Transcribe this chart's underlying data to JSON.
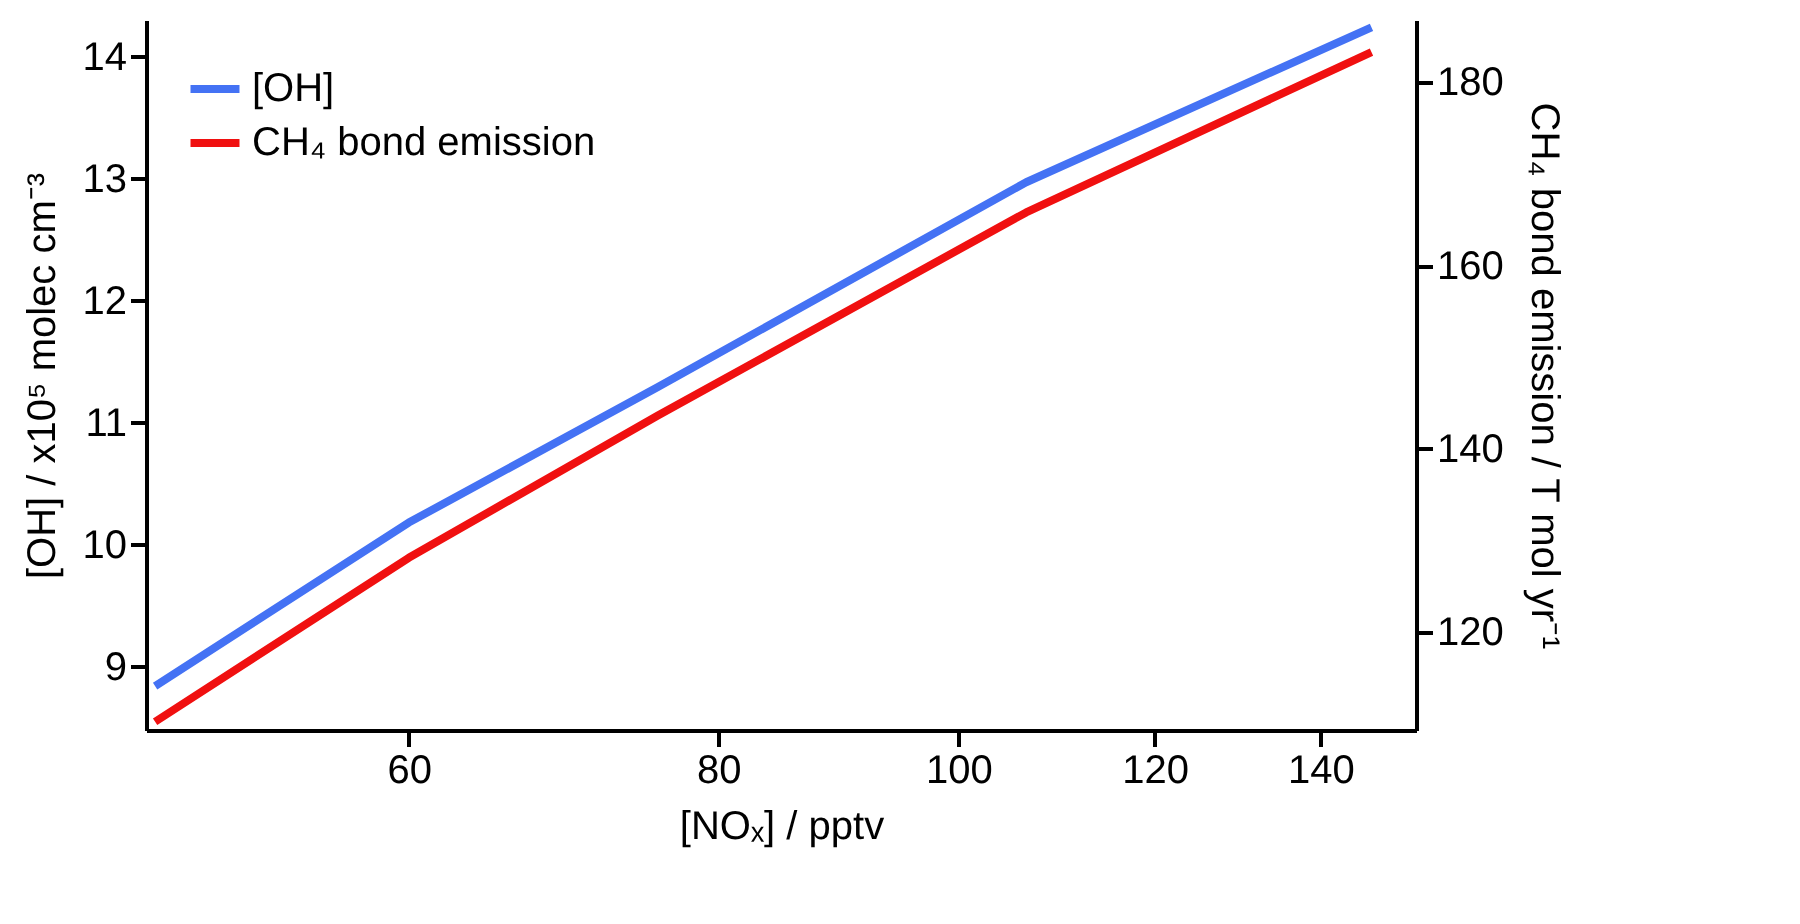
{
  "chart_data": {
    "type": "line",
    "xlabel": "[NOₓ] / pptv",
    "ylabel": "[OH] / x10⁵ molec cm⁻³",
    "y2label": "CH₄ bond emission / T mol yr⁻¹",
    "log": "x",
    "xlim": [
      47,
      153
    ],
    "xticks": [
      60,
      80,
      100,
      120,
      140
    ],
    "ylim": [
      8.48,
      14.3
    ],
    "yticks": [
      9,
      10,
      11,
      12,
      13,
      14
    ],
    "y2lim": [
      109.3,
      186.8
    ],
    "y2ticks": [
      120,
      140,
      160,
      180
    ],
    "grid": false,
    "legend": "top left",
    "line_style": "solid",
    "marker": "none",
    "series": [
      {
        "name": "[OH]",
        "color": "#4472f4",
        "x": [
          47.4,
          60,
          75.6,
          106.5,
          146.8
        ],
        "values": [
          8.84,
          10.18,
          11.29,
          12.97,
          14.24
        ]
      },
      {
        "name": "CH₄ bond emission",
        "color": "#f01010",
        "axis": "y2",
        "x": [
          47.4,
          60,
          75.6,
          106.5,
          146.8
        ],
        "values": [
          110.2,
          128.1,
          143.6,
          165.8,
          183.3
        ]
      }
    ]
  }
}
